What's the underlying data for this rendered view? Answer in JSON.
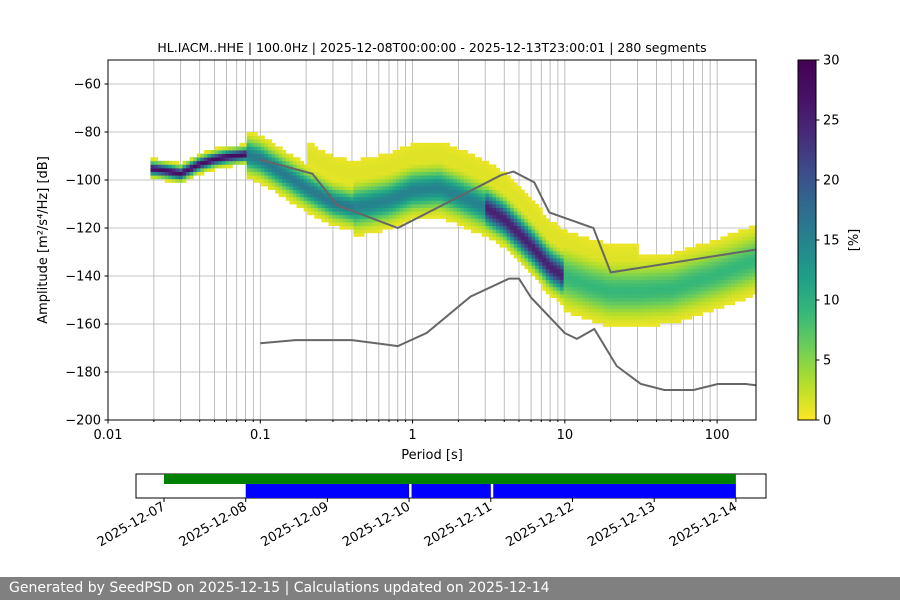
{
  "title": "HL.IACM..HHE | 100.0Hz | 2025-12-08T00:00:00 - 2025-12-13T23:00:01 | 280 segments",
  "footer": "Generated by SeedPSD on 2025-12-15 | Calculations updated on 2025-12-14",
  "chart_data": [
    {
      "type": "heatmap",
      "title": "HL.IACM..HHE | 100.0Hz | 2025-12-08T00:00:00 - 2025-12-13T23:00:01 | 280 segments",
      "xlabel": "Period [s]",
      "ylabel": "Amplitude [m²/s⁴/Hz] [dB]",
      "x_scale": "log",
      "xlim": [
        0.01,
        180
      ],
      "ylim": [
        -200,
        -50
      ],
      "x_ticks": [
        "0.01",
        "0.1",
        "1",
        "10",
        "100"
      ],
      "y_ticks": [
        "−60",
        "−80",
        "−100",
        "−120",
        "−140",
        "−160",
        "−180",
        "−200"
      ],
      "grid": true,
      "colorbar": {
        "label": "[%]",
        "range": [
          0,
          30
        ],
        "ticks": [
          "0",
          "5",
          "10",
          "15",
          "20",
          "25",
          "30"
        ],
        "colormap": "viridis_r"
      },
      "psd_mode_curve": {
        "period": [
          0.02,
          0.025,
          0.03,
          0.04,
          0.05,
          0.06,
          0.08,
          0.1,
          0.15,
          0.2,
          0.3,
          0.4,
          0.5,
          0.7,
          1.0,
          1.5,
          2,
          3,
          4,
          5,
          6,
          8,
          10,
          15,
          20,
          30,
          50,
          100,
          180
        ],
        "db": [
          -96,
          -97,
          -98,
          -94,
          -92,
          -91,
          -90,
          -92,
          -99,
          -104,
          -110,
          -112,
          -111,
          -109,
          -105,
          -104,
          -107,
          -112,
          -117,
          -123,
          -128,
          -137,
          -141,
          -145,
          -147,
          -147,
          -146,
          -140,
          -134
        ]
      },
      "noise_models": [
        {
          "name": "",
          "period": [
            0.1,
            0.17,
            0.4,
            0.8,
            1.24,
            2.4,
            4.3,
            5.0,
            6.0,
            10.0,
            12.0,
            15.6,
            21.9,
            31.6,
            45.0,
            70.0,
            101.0,
            154.0,
            180.0
          ],
          "db": [
            -168,
            -166.7,
            -166.7,
            -169.2,
            -163.7,
            -148.6,
            -141.1,
            -141.1,
            -149.0,
            -163.8,
            -166.2,
            -162.1,
            -177.5,
            -185.0,
            -187.5,
            -187.5,
            -185.0,
            -185.0,
            -185.5
          ]
        },
        {
          "name": "",
          "period": [
            0.1,
            0.22,
            0.32,
            0.8,
            3.8,
            4.6,
            6.3,
            7.9,
            15.4,
            20.0,
            180.0
          ],
          "db": [
            -91.5,
            -97.4,
            -110.5,
            -120.0,
            -98.0,
            -96.5,
            -101.0,
            -113.5,
            -120.0,
            -138.5,
            -129.0
          ]
        }
      ]
    },
    {
      "type": "timeline",
      "x_ticks": [
        "2025-12-07",
        "2025-12-08",
        "2025-12-09",
        "2025-12-10",
        "2025-12-11",
        "2025-12-12",
        "2025-12-13",
        "2025-12-14"
      ],
      "data_availability": [
        {
          "start_day": 7.0,
          "end_day": 14.0
        }
      ],
      "psd_segments": [
        {
          "start_day": 8.0,
          "end_day": 10.0
        },
        {
          "start_day": 10.03,
          "end_day": 11.0
        },
        {
          "start_day": 11.03,
          "end_day": 14.0
        }
      ],
      "colors": {
        "availability": "#008000",
        "segments": "#0000ff"
      }
    }
  ]
}
